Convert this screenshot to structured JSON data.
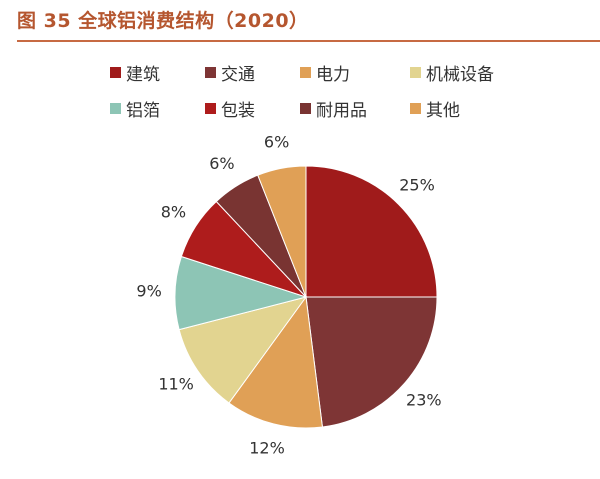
{
  "title": "图 35 全球铝消费结构（2020）",
  "chart_data": {
    "type": "pie",
    "categories": [
      "建筑",
      "交通",
      "电力",
      "机械设备",
      "铝箔",
      "包装",
      "耐用品",
      "其他"
    ],
    "values": [
      25,
      23,
      12,
      11,
      9,
      8,
      6,
      6
    ],
    "labels": [
      "25%",
      "23%",
      "12%",
      "11%",
      "9%",
      "8%",
      "6%",
      "6%"
    ],
    "colors": [
      "#a01b1b",
      "#7e3535",
      "#e0a056",
      "#e2d490",
      "#8dc5b5",
      "#ae1c1c",
      "#793432",
      "#e0a056"
    ],
    "legend_position": "top"
  }
}
